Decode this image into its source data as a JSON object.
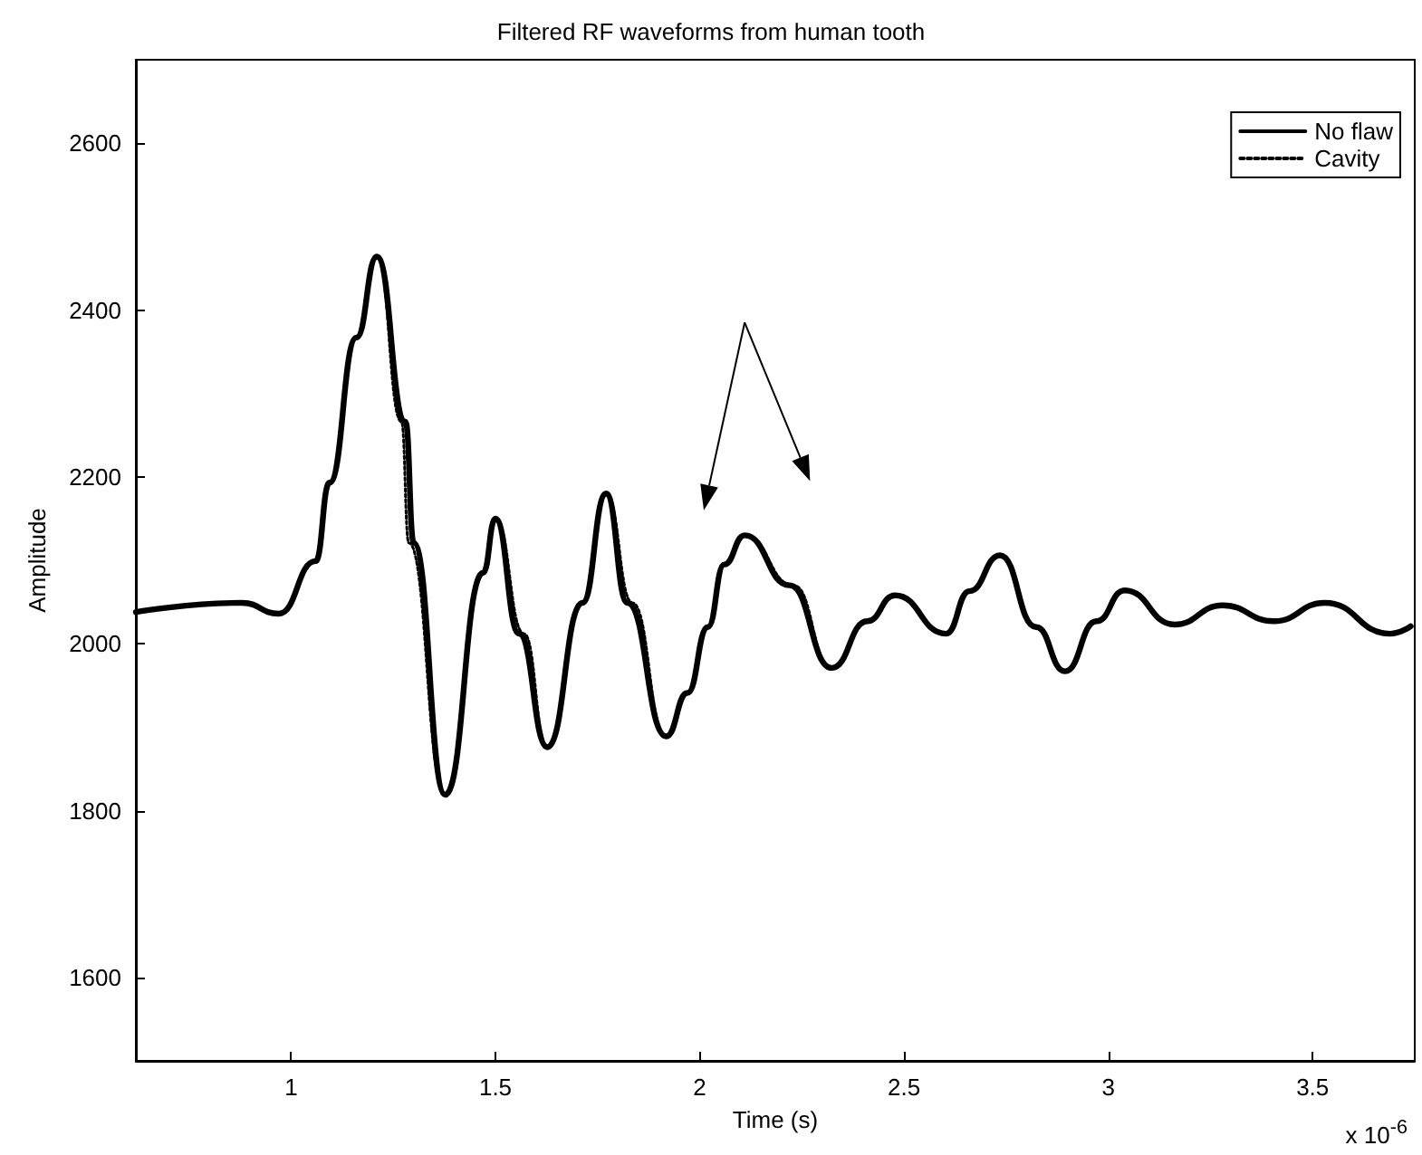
{
  "chart_data": {
    "type": "line",
    "title": "Filtered RF waveforms from human tooth",
    "xlabel": "Time (s)",
    "ylabel": "Amplitude",
    "annotations": [
      "x 10$^{-6}$"
    ],
    "x": [
      0.62,
      0.88,
      0.97,
      1.06,
      1.094,
      1.16,
      1.21,
      1.28,
      1.3,
      1.377,
      1.47,
      1.5,
      1.558,
      1.627,
      1.713,
      1.771,
      1.823,
      1.918,
      1.97,
      2.02,
      2.06,
      2.11,
      2.22,
      2.323,
      2.41,
      2.478,
      2.603,
      2.66,
      2.735,
      2.823,
      2.894,
      2.971,
      3.04,
      3.162,
      3.28,
      3.405,
      3.53,
      3.69,
      3.74
    ],
    "series": [
      {
        "name": "No flaw",
        "color": "#000000",
        "line_style": "solid",
        "values": [
          2038,
          2049,
          2036,
          2099,
          2193,
          2367,
          2464,
          2266,
          2121,
          1819,
          2085,
          2150,
          2012,
          1876,
          2049,
          2180,
          2049,
          1889,
          1941,
          2020,
          2095,
          2130,
          2070,
          1971,
          2027,
          2058,
          2012,
          2063,
          2106,
          2020,
          1967,
          2027,
          2064,
          2023,
          2046,
          2027,
          2049,
          2012,
          2021
        ]
      },
      {
        "name": "Cavity",
        "color": "#000000",
        "line_style": "dotted",
        "x": [
          0.62,
          0.88,
          0.97,
          1.06,
          1.094,
          1.16,
          1.21,
          1.27,
          1.288,
          1.377,
          1.47,
          1.5,
          1.57,
          1.627,
          1.713,
          1.771,
          1.835,
          1.918,
          1.97,
          2.02,
          2.06,
          2.11,
          2.23,
          2.323,
          2.41,
          2.478,
          2.603,
          2.66,
          2.735,
          2.823,
          2.894,
          2.971,
          3.04,
          3.162,
          3.28,
          3.405,
          3.53,
          3.69,
          3.74
        ],
        "values": [
          2038,
          2049,
          2036,
          2099,
          2193,
          2367,
          2464,
          2266,
          2121,
          1819,
          2085,
          2150,
          2012,
          1876,
          2049,
          2180,
          2049,
          1889,
          1941,
          2020,
          2095,
          2130,
          2070,
          1971,
          2027,
          2058,
          2012,
          2063,
          2106,
          2020,
          1967,
          2027,
          2064,
          2023,
          2046,
          2027,
          2049,
          2012,
          2021
        ]
      }
    ],
    "xlim": [
      0.62,
      3.75
    ],
    "xticks": [
      1,
      1.5,
      2,
      2.5,
      3,
      3.5
    ],
    "ylim": [
      1500,
      2700
    ],
    "yticks": [
      1600,
      1800,
      2000,
      2200,
      2400,
      2600
    ],
    "grid": false,
    "legend": "top right",
    "marker": "none"
  }
}
